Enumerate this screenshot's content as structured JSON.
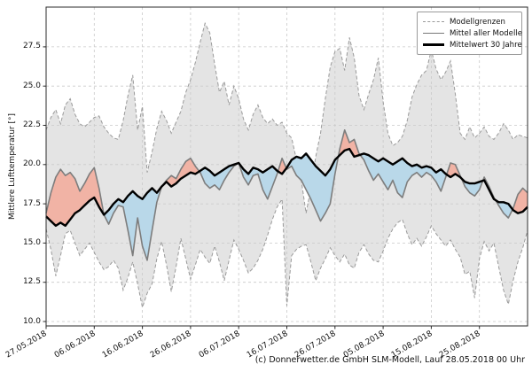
{
  "footer": {
    "credit": "(c) Donnerwetter.de GmbH SLM-Modell, Lauf 28.05.2018 00 Uhr"
  },
  "chart_data": {
    "type": "area",
    "title": "",
    "xlabel": "",
    "ylabel": "Mittlere Lufttemperatur [°]",
    "legend_position": "upper right",
    "grid": true,
    "legend": [
      "Modellgrenzen",
      "Mittel aller Modelle",
      "Mittelwert 30 Jahre"
    ],
    "x_tick_labels": [
      "27.05.2018",
      "06.06.2018",
      "16.06.2018",
      "26.06.2018",
      "06.07.2018",
      "16.07.2018",
      "26.07.2018",
      "05.08.2018",
      "15.08.2018",
      "25.08.2018"
    ],
    "x_tick_days": [
      0,
      10,
      20,
      30,
      40,
      50,
      60,
      70,
      80,
      90
    ],
    "y_ticks": [
      10.0,
      12.5,
      15.0,
      17.5,
      20.0,
      22.5,
      25.0,
      27.5
    ],
    "ylim": [
      9.7,
      30.1
    ],
    "xlim_days": [
      0,
      100
    ],
    "colors": {
      "band_fill": "#e4e4e4",
      "band_edge": "#9a9a9a",
      "grid": "#c9c9c9",
      "model_mean_line": "#7d7d7d",
      "mean_30y_line": "#000000",
      "warm_fill": "#f1b3a5",
      "cold_fill": "#b9d8e9",
      "spine": "#2b2b2b"
    },
    "series": {
      "model_upper": [
        22.2,
        23.0,
        23.5,
        22.6,
        23.8,
        24.2,
        23.2,
        22.6,
        22.4,
        22.7,
        23.0,
        23.1,
        22.4,
        22.0,
        21.7,
        21.6,
        22.8,
        24.4,
        25.7,
        22.2,
        23.7,
        19.5,
        20.8,
        22.3,
        23.4,
        22.8,
        22.0,
        22.7,
        23.4,
        24.6,
        25.4,
        26.5,
        27.8,
        29.0,
        28.4,
        26.4,
        24.6,
        25.3,
        23.8,
        25.0,
        24.2,
        22.9,
        22.2,
        23.2,
        23.8,
        23.0,
        22.6,
        22.9,
        22.5,
        22.7,
        22.0,
        21.7,
        20.3,
        19.0,
        16.9,
        18.5,
        20.5,
        22.0,
        24.2,
        26.2,
        27.2,
        27.4,
        26.0,
        28.1,
        26.8,
        24.4,
        23.5,
        24.5,
        25.4,
        26.8,
        24.0,
        22.0,
        21.2,
        21.4,
        21.8,
        22.8,
        24.3,
        25.1,
        25.7,
        26.0,
        27.3,
        26.1,
        25.4,
        25.9,
        26.6,
        24.5,
        22.0,
        21.6,
        22.4,
        21.7,
        22.0,
        22.4,
        21.8,
        21.6,
        22.0,
        22.6,
        22.2,
        21.6,
        21.9,
        21.8,
        21.7
      ],
      "model_lower": [
        15.9,
        14.6,
        12.9,
        14.2,
        15.6,
        15.8,
        15.0,
        14.2,
        14.6,
        15.0,
        14.4,
        13.8,
        13.3,
        13.5,
        13.9,
        13.4,
        12.0,
        12.8,
        13.8,
        12.4,
        10.9,
        11.8,
        12.4,
        14.0,
        15.1,
        13.6,
        11.9,
        13.5,
        15.3,
        14.0,
        12.7,
        13.6,
        14.6,
        14.1,
        13.7,
        14.8,
        13.8,
        12.6,
        13.9,
        15.2,
        14.6,
        13.9,
        13.1,
        13.4,
        13.9,
        14.6,
        15.5,
        16.5,
        17.3,
        17.8,
        11.0,
        14.2,
        14.6,
        14.8,
        14.9,
        13.8,
        12.6,
        13.4,
        14.0,
        14.7,
        14.2,
        13.8,
        14.3,
        13.6,
        13.4,
        14.4,
        14.9,
        14.3,
        13.9,
        13.8,
        14.5,
        15.3,
        15.9,
        16.3,
        16.5,
        15.6,
        14.9,
        15.3,
        14.8,
        15.4,
        16.1,
        15.6,
        15.2,
        14.8,
        15.2,
        14.6,
        14.1,
        13.0,
        13.2,
        11.5,
        14.0,
        15.1,
        14.5,
        15.0,
        13.5,
        12.0,
        11.1,
        12.6,
        13.8,
        14.7,
        15.8
      ],
      "model_mean": [
        16.9,
        18.2,
        19.2,
        19.7,
        19.3,
        19.5,
        19.1,
        18.3,
        18.8,
        19.4,
        19.8,
        18.5,
        16.8,
        16.2,
        16.9,
        17.4,
        17.3,
        15.8,
        14.2,
        16.6,
        14.8,
        13.9,
        15.8,
        17.6,
        18.6,
        19.0,
        19.3,
        19.1,
        19.7,
        20.2,
        20.4,
        19.9,
        19.5,
        18.8,
        18.5,
        18.7,
        18.4,
        19.0,
        19.5,
        19.9,
        20.1,
        19.2,
        18.7,
        19.3,
        19.4,
        18.4,
        17.8,
        18.6,
        19.4,
        20.4,
        19.7,
        19.9,
        19.3,
        19.0,
        18.4,
        17.8,
        17.1,
        16.4,
        16.9,
        17.5,
        19.4,
        21.0,
        22.2,
        21.4,
        21.6,
        20.7,
        20.3,
        19.6,
        19.0,
        19.4,
        18.9,
        18.4,
        19.0,
        18.2,
        17.9,
        18.9,
        19.3,
        19.5,
        19.2,
        19.5,
        19.3,
        18.9,
        18.3,
        19.2,
        20.1,
        20.0,
        19.3,
        18.6,
        18.2,
        18.0,
        18.4,
        19.2,
        18.6,
        17.9,
        17.4,
        16.9,
        16.6,
        17.2,
        18.1,
        18.5,
        18.2
      ],
      "mean_30y": [
        16.7,
        16.4,
        16.1,
        16.3,
        16.1,
        16.5,
        16.9,
        17.1,
        17.4,
        17.7,
        17.9,
        17.3,
        16.8,
        17.1,
        17.5,
        17.8,
        17.6,
        18.0,
        18.3,
        18.0,
        17.8,
        18.2,
        18.5,
        18.2,
        18.6,
        18.9,
        18.6,
        18.8,
        19.1,
        19.3,
        19.5,
        19.4,
        19.6,
        19.8,
        19.6,
        19.3,
        19.5,
        19.7,
        19.9,
        20.0,
        20.1,
        19.7,
        19.4,
        19.8,
        19.7,
        19.5,
        19.7,
        19.9,
        19.6,
        19.4,
        19.8,
        20.3,
        20.5,
        20.4,
        20.7,
        20.3,
        19.9,
        19.6,
        19.3,
        19.7,
        20.3,
        20.6,
        20.9,
        21.0,
        20.5,
        20.6,
        20.7,
        20.6,
        20.4,
        20.2,
        20.4,
        20.2,
        20.0,
        20.2,
        20.4,
        20.1,
        19.9,
        20.0,
        19.8,
        19.9,
        19.8,
        19.5,
        19.7,
        19.4,
        19.2,
        19.4,
        19.2,
        18.9,
        18.8,
        18.8,
        18.9,
        19.0,
        18.4,
        17.8,
        17.6,
        17.6,
        17.5,
        17.1,
        16.9,
        17.0,
        17.3
      ]
    }
  }
}
